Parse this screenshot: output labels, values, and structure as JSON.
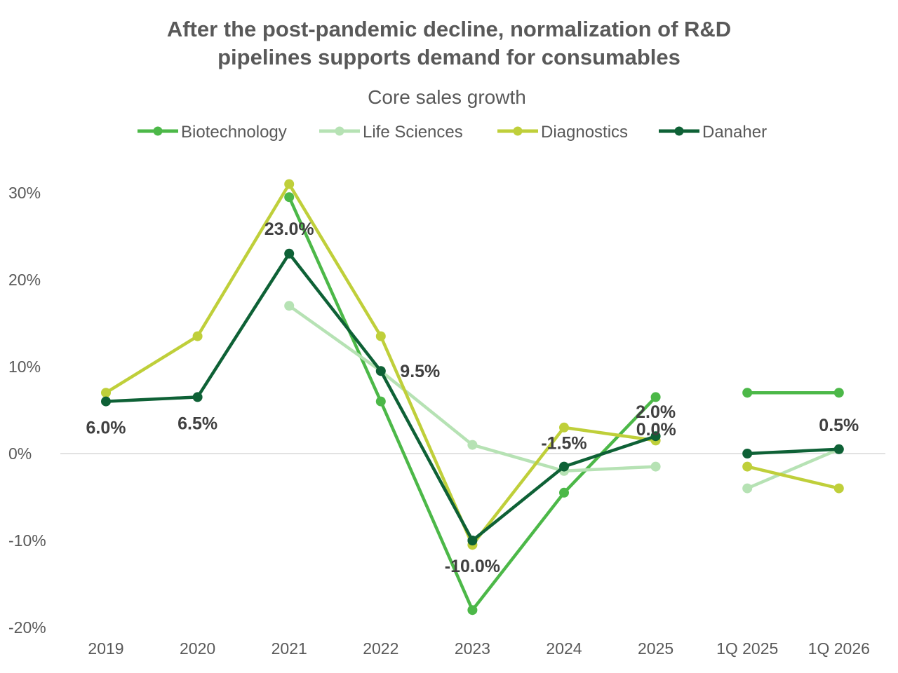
{
  "chart_data": {
    "type": "line",
    "title_lines": [
      "After the post-pandemic decline, normalization of R&D",
      "pipelines supports demand for consumables"
    ],
    "subtitle": "Core sales growth",
    "categories": [
      "2019",
      "2020",
      "2021",
      "2022",
      "2023",
      "2024",
      "2025",
      "1Q 2025",
      "1Q 2026"
    ],
    "y_ticks": [
      {
        "value": 30,
        "label": "30%"
      },
      {
        "value": 20,
        "label": "20%"
      },
      {
        "value": 10,
        "label": "10%"
      },
      {
        "value": 0,
        "label": "0%"
      },
      {
        "value": -10,
        "label": "-10%"
      },
      {
        "value": -20,
        "label": "-20%"
      }
    ],
    "ylim": [
      -20,
      30
    ],
    "grid": false,
    "zero_line": true,
    "legend_position": "top",
    "segments": [
      [
        0,
        6
      ],
      [
        7,
        8
      ]
    ],
    "series": [
      {
        "name": "Biotechnology",
        "color": "#4cb848",
        "values": [
          null,
          null,
          29.5,
          6.0,
          -18.0,
          -4.5,
          6.5,
          7.0,
          7.0
        ]
      },
      {
        "name": "Life Sciences",
        "color": "#b6e2b4",
        "values": [
          null,
          null,
          17.0,
          9.5,
          1.0,
          -2.0,
          -1.5,
          -4.0,
          0.5
        ]
      },
      {
        "name": "Diagnostics",
        "color": "#bfcf3a",
        "values": [
          7.0,
          13.5,
          31.0,
          13.5,
          -10.5,
          3.0,
          1.5,
          -1.5,
          -4.0
        ]
      },
      {
        "name": "Danaher",
        "color": "#0e6136",
        "values": [
          6.0,
          6.5,
          23.0,
          9.5,
          -10.0,
          -1.5,
          2.0,
          0.0,
          0.5
        ]
      }
    ],
    "data_labels": {
      "series": "Danaher",
      "labels": [
        "6.0%",
        "6.5%",
        "23.0%",
        "9.5%",
        "-10.0%",
        "-1.5%",
        "2.0%",
        "0.0%",
        "0.5%"
      ]
    }
  }
}
